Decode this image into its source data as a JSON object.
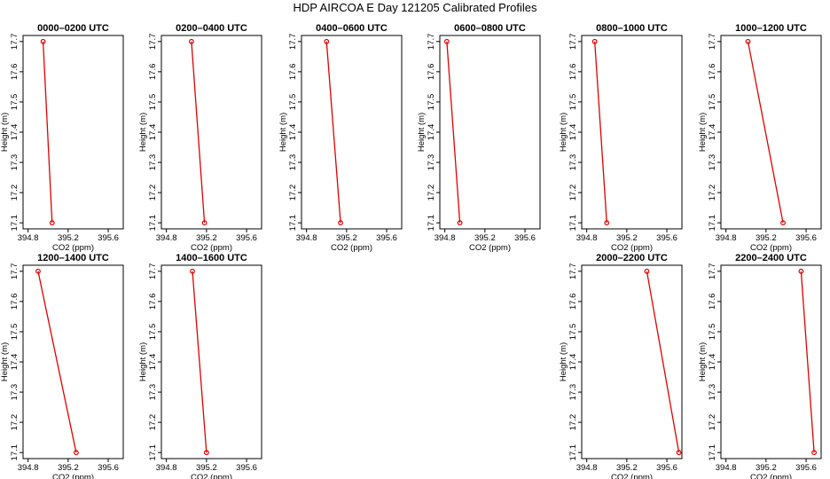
{
  "title": "HDP AIRCOA E  Day 121205  Calibrated Profiles",
  "colors": {
    "line": "#e00000",
    "axis": "#000000"
  },
  "chart_data": {
    "type": "line",
    "xlabel": "CO2 (ppm)",
    "ylabel": "Height (m)",
    "xlim": [
      394.75,
      395.75
    ],
    "ylim": [
      17.08,
      17.72
    ],
    "xticks": [
      394.8,
      395.2,
      395.6
    ],
    "xtick_labels": [
      "394.8",
      "395.2",
      "395.6"
    ],
    "yticks": [
      17.1,
      17.2,
      17.3,
      17.4,
      17.5,
      17.6,
      17.7
    ],
    "ytick_labels": [
      "17.1",
      "17.2",
      "17.3",
      "17.4",
      "17.5",
      "17.6",
      "17.7"
    ],
    "panels": [
      {
        "title": "0000–0200 UTC",
        "points": [
          {
            "x": 394.95,
            "y": 17.7
          },
          {
            "x": 395.04,
            "y": 17.1
          }
        ]
      },
      {
        "title": "0200–0400 UTC",
        "points": [
          {
            "x": 395.05,
            "y": 17.7
          },
          {
            "x": 395.18,
            "y": 17.1
          }
        ]
      },
      {
        "title": "0400–0600 UTC",
        "points": [
          {
            "x": 395.0,
            "y": 17.7
          },
          {
            "x": 395.14,
            "y": 17.1
          }
        ]
      },
      {
        "title": "0600–0800 UTC",
        "points": [
          {
            "x": 394.82,
            "y": 17.7
          },
          {
            "x": 394.95,
            "y": 17.1
          }
        ]
      },
      {
        "title": "0800–1000 UTC",
        "points": [
          {
            "x": 394.88,
            "y": 17.7
          },
          {
            "x": 395.0,
            "y": 17.1
          }
        ]
      },
      {
        "title": "1000–1200 UTC",
        "points": [
          {
            "x": 395.02,
            "y": 17.7
          },
          {
            "x": 395.37,
            "y": 17.1
          }
        ]
      },
      {
        "title": "1200–1400 UTC",
        "points": [
          {
            "x": 394.9,
            "y": 17.7
          },
          {
            "x": 395.28,
            "y": 17.1
          }
        ]
      },
      {
        "title": "1400–1600 UTC",
        "points": [
          {
            "x": 395.06,
            "y": 17.7
          },
          {
            "x": 395.2,
            "y": 17.1
          }
        ]
      },
      {
        "title": "2000–2200 UTC",
        "points": [
          {
            "x": 395.4,
            "y": 17.7
          },
          {
            "x": 395.72,
            "y": 17.1
          }
        ]
      },
      {
        "title": "2200–2400 UTC",
        "points": [
          {
            "x": 395.55,
            "y": 17.7
          },
          {
            "x": 395.68,
            "y": 17.1
          }
        ]
      }
    ]
  }
}
